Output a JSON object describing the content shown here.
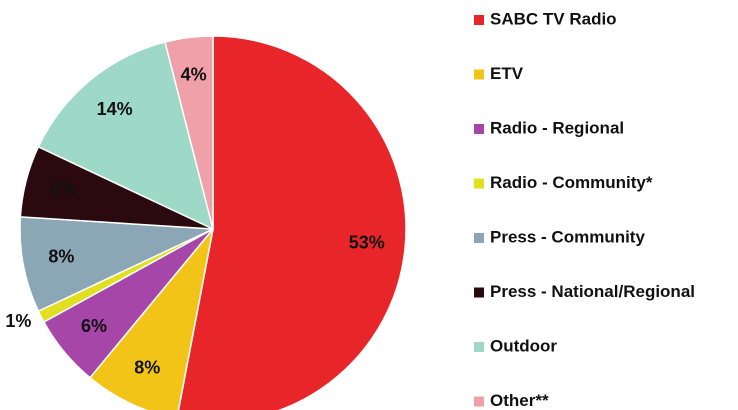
{
  "chart_data": {
    "type": "pie",
    "categories": [
      "SABC TV Radio",
      "ETV",
      "Radio - Regional",
      "Radio - Community*",
      "Press - Community",
      "Press - National/Regional",
      "Outdoor",
      "Other**"
    ],
    "values": [
      53,
      8,
      6,
      1,
      8,
      6,
      14,
      4
    ],
    "value_labels": [
      "53%",
      "8%",
      "6%",
      "1%",
      "8%",
      "6%",
      "14%",
      "4%"
    ],
    "colors": [
      "#e8262a",
      "#f2c418",
      "#a646a8",
      "#e0e020",
      "#8ba6b4",
      "#2a0a0e",
      "#9ed8c6",
      "#f0a0a8"
    ]
  }
}
